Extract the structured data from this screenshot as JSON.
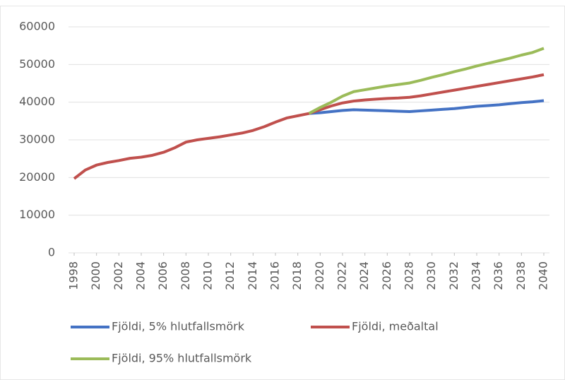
{
  "chart_data": {
    "type": "line",
    "x": [
      1998,
      1999,
      2000,
      2001,
      2002,
      2003,
      2004,
      2005,
      2006,
      2007,
      2008,
      2009,
      2010,
      2011,
      2012,
      2013,
      2014,
      2015,
      2016,
      2017,
      2018,
      2019,
      2020,
      2021,
      2022,
      2023,
      2024,
      2025,
      2026,
      2027,
      2028,
      2029,
      2030,
      2031,
      2032,
      2033,
      2034,
      2035,
      2036,
      2037,
      2038,
      2039,
      2040
    ],
    "xlim": [
      1998,
      2040
    ],
    "xticks": [
      1998,
      2000,
      2002,
      2004,
      2006,
      2008,
      2010,
      2012,
      2014,
      2016,
      2018,
      2020,
      2022,
      2024,
      2026,
      2028,
      2030,
      2032,
      2034,
      2036,
      2038,
      2040
    ],
    "ylim": [
      0,
      60000
    ],
    "yticks": [
      0,
      10000,
      20000,
      30000,
      40000,
      50000,
      60000
    ],
    "grid": true,
    "legend": "bottom",
    "series": [
      {
        "name": "Fjöldi, 5% hlutfallsmörk",
        "color": "#4472c4",
        "values": [
          null,
          null,
          null,
          null,
          null,
          null,
          null,
          null,
          null,
          null,
          null,
          null,
          null,
          null,
          null,
          null,
          null,
          null,
          null,
          null,
          null,
          37000,
          37200,
          37500,
          37800,
          38000,
          37900,
          37800,
          37700,
          37600,
          37500,
          37700,
          37900,
          38100,
          38300,
          38600,
          38900,
          39100,
          39300,
          39600,
          39900,
          40100,
          40400
        ]
      },
      {
        "name": "Fjöldi, meðaltal",
        "color": "#c0504d",
        "values": [
          19700,
          22000,
          23300,
          24000,
          24500,
          25100,
          25400,
          25900,
          26700,
          27900,
          29400,
          30000,
          30400,
          30800,
          31300,
          31800,
          32500,
          33500,
          34700,
          35800,
          36400,
          37000,
          38000,
          39000,
          39800,
          40300,
          40600,
          40800,
          41000,
          41100,
          41300,
          41700,
          42200,
          42700,
          43200,
          43700,
          44200,
          44700,
          45200,
          45700,
          46200,
          46700,
          47300
        ]
      },
      {
        "name": "Fjöldi, 95% hlutfallsmörk",
        "color": "#9bbb59",
        "values": [
          null,
          null,
          null,
          null,
          null,
          null,
          null,
          null,
          null,
          null,
          null,
          null,
          null,
          null,
          null,
          null,
          null,
          null,
          null,
          null,
          null,
          37000,
          38600,
          40000,
          41600,
          42800,
          43300,
          43800,
          44300,
          44700,
          45100,
          45800,
          46600,
          47300,
          48100,
          48800,
          49600,
          50300,
          51000,
          51700,
          52500,
          53200,
          54300
        ]
      }
    ]
  }
}
